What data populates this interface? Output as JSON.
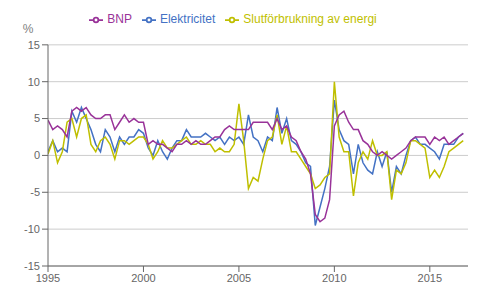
{
  "chart_data": {
    "type": "line",
    "ylabel": "%",
    "x": [
      1995.0,
      1995.25,
      1995.5,
      1995.75,
      1996.0,
      1996.25,
      1996.5,
      1996.75,
      1997.0,
      1997.25,
      1997.5,
      1997.75,
      1998.0,
      1998.25,
      1998.5,
      1998.75,
      1999.0,
      1999.25,
      1999.5,
      1999.75,
      2000.0,
      2000.25,
      2000.5,
      2000.75,
      2001.0,
      2001.25,
      2001.5,
      2001.75,
      2002.0,
      2002.25,
      2002.5,
      2002.75,
      2003.0,
      2003.25,
      2003.5,
      2003.75,
      2004.0,
      2004.25,
      2004.5,
      2004.75,
      2005.0,
      2005.25,
      2005.5,
      2005.75,
      2006.0,
      2006.25,
      2006.5,
      2006.75,
      2007.0,
      2007.25,
      2007.5,
      2007.75,
      2008.0,
      2008.25,
      2008.5,
      2008.75,
      2009.0,
      2009.25,
      2009.5,
      2009.75,
      2010.0,
      2010.25,
      2010.5,
      2010.75,
      2011.0,
      2011.25,
      2011.5,
      2011.75,
      2012.0,
      2012.25,
      2012.5,
      2012.75,
      2013.0,
      2013.25,
      2013.5,
      2013.75,
      2014.0,
      2014.25,
      2014.5,
      2014.75,
      2015.0,
      2015.25,
      2015.5,
      2015.75,
      2016.0,
      2016.25,
      2016.5,
      2016.75
    ],
    "series": [
      {
        "name": "Elektricitet",
        "color": "#4472c4",
        "values": [
          0.5,
          2.0,
          0.5,
          1.0,
          0.5,
          6.0,
          4.5,
          6.5,
          5.0,
          3.5,
          1.5,
          0.5,
          3.5,
          2.5,
          0.5,
          2.5,
          1.5,
          2.5,
          2.5,
          3.5,
          3.0,
          1.0,
          0.0,
          2.0,
          0.5,
          -0.5,
          1.0,
          2.0,
          2.0,
          3.5,
          2.5,
          2.5,
          2.5,
          3.0,
          2.5,
          2.0,
          2.5,
          1.5,
          2.5,
          2.0,
          2.5,
          1.5,
          5.5,
          2.5,
          2.0,
          0.5,
          2.5,
          2.0,
          6.5,
          3.0,
          5.0,
          2.0,
          1.5,
          0.5,
          -1.0,
          -1.5,
          -9.5,
          -7.0,
          -4.5,
          -1.5,
          7.5,
          3.5,
          2.0,
          1.5,
          -2.5,
          1.5,
          -1.0,
          -2.0,
          -2.5,
          0.5,
          -1.5,
          0.5,
          -5.0,
          -1.5,
          -2.5,
          0.0,
          2.0,
          2.5,
          1.5,
          1.5,
          1.0,
          0.5,
          -0.5,
          1.5,
          1.5,
          1.5,
          2.5,
          3.0
        ]
      },
      {
        "name": "Slutförbrukning av energi",
        "color": "#bfbf00",
        "values": [
          0.2,
          2.0,
          -1.0,
          0.5,
          4.5,
          5.0,
          2.5,
          5.0,
          5.5,
          1.5,
          0.5,
          2.0,
          2.5,
          1.5,
          -0.5,
          2.0,
          2.0,
          1.5,
          2.0,
          2.5,
          2.5,
          1.5,
          -0.5,
          0.5,
          2.0,
          1.0,
          1.0,
          1.5,
          2.0,
          2.5,
          1.5,
          1.5,
          2.0,
          1.5,
          1.5,
          0.5,
          1.0,
          0.5,
          0.5,
          1.5,
          7.0,
          2.0,
          -4.5,
          -3.0,
          -3.5,
          -0.5,
          2.0,
          2.5,
          5.5,
          1.5,
          4.0,
          0.5,
          0.5,
          -0.5,
          -1.5,
          -2.5,
          -4.5,
          -4.0,
          -3.0,
          -2.5,
          10.0,
          2.5,
          0.5,
          0.5,
          -5.5,
          -1.0,
          0.5,
          -0.5,
          2.0,
          0.0,
          0.0,
          0.5,
          -6.0,
          -2.0,
          -2.5,
          -1.0,
          2.0,
          2.0,
          1.5,
          1.0,
          -3.0,
          -2.0,
          -3.0,
          -1.5,
          0.5,
          1.0,
          1.5,
          2.0
        ]
      },
      {
        "name": "BNP",
        "color": "#993399",
        "values": [
          4.8,
          3.5,
          4.0,
          3.5,
          2.5,
          6.0,
          6.5,
          6.0,
          6.5,
          5.5,
          5.0,
          5.0,
          5.5,
          5.5,
          3.5,
          4.5,
          5.5,
          4.5,
          5.0,
          4.5,
          4.5,
          1.5,
          2.0,
          1.5,
          1.5,
          1.0,
          0.5,
          1.5,
          1.5,
          2.0,
          1.5,
          2.0,
          1.5,
          1.5,
          2.0,
          2.5,
          2.5,
          3.5,
          4.0,
          3.5,
          3.5,
          3.5,
          3.5,
          4.5,
          4.5,
          4.5,
          4.5,
          3.5,
          5.0,
          3.5,
          4.0,
          2.5,
          2.0,
          0.5,
          -0.5,
          -2.5,
          -8.0,
          -9.0,
          -8.5,
          -6.0,
          4.0,
          5.5,
          6.0,
          4.5,
          3.5,
          3.5,
          2.0,
          1.5,
          0.5,
          0.0,
          0.5,
          0.0,
          -0.5,
          0.0,
          0.5,
          1.0,
          2.0,
          2.5,
          2.5,
          2.5,
          1.5,
          2.5,
          2.0,
          2.5,
          1.5,
          2.0,
          2.5,
          3.0
        ]
      }
    ],
    "xlim": [
      1995,
      2017
    ],
    "xticks": [
      1995,
      2000,
      2005,
      2010,
      2015
    ],
    "ylim": [
      -15,
      15
    ],
    "yticks": [
      -15,
      -10,
      -5,
      0,
      5,
      10,
      15
    ],
    "grid": "y",
    "legend": "top"
  }
}
